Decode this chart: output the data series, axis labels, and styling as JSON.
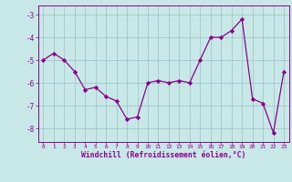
{
  "x": [
    0,
    1,
    2,
    3,
    4,
    5,
    6,
    7,
    8,
    9,
    10,
    11,
    12,
    13,
    14,
    15,
    16,
    17,
    18,
    19,
    20,
    21,
    22,
    23
  ],
  "y": [
    -5.0,
    -4.7,
    -5.0,
    -5.5,
    -6.3,
    -6.2,
    -6.6,
    -6.8,
    -7.6,
    -7.5,
    -6.0,
    -5.9,
    -6.0,
    -5.9,
    -6.0,
    -5.0,
    -4.0,
    -4.0,
    -3.7,
    -3.2,
    -6.7,
    -6.9,
    -8.2,
    -5.5
  ],
  "line_color": "#8B008B",
  "marker_color": "#8B008B",
  "bg_color": "#c8e8e8",
  "grid_color": "#a0c8c8",
  "xlabel": "Windchill (Refroidissement éolien,°C)",
  "xlabel_color": "#8B008B",
  "ylim": [
    -8.6,
    -2.6
  ],
  "yticks": [
    -8,
    -7,
    -6,
    -5,
    -4,
    -3
  ],
  "xtick_labels": [
    "0",
    "1",
    "2",
    "3",
    "4",
    "5",
    "6",
    "7",
    "8",
    "9",
    "10",
    "11",
    "12",
    "13",
    "14",
    "15",
    "16",
    "17",
    "18",
    "19",
    "20",
    "21",
    "22",
    "23"
  ],
  "tick_color": "#8B008B",
  "font_color": "#8B008B",
  "spine_color": "#8B008B"
}
